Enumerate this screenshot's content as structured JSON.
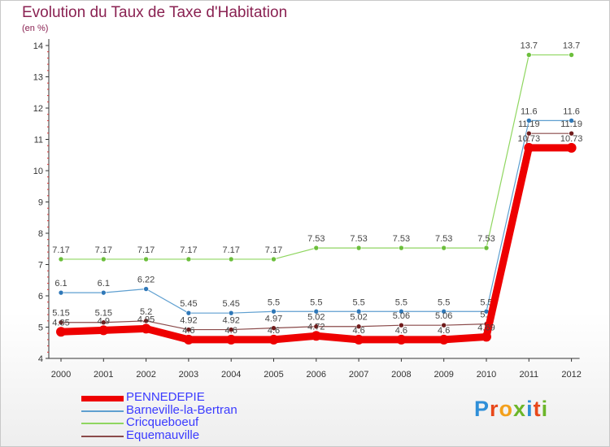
{
  "title": "Evolution du Taux de Taxe d'Habitation",
  "subtitle": "(en %)",
  "logo": {
    "text": "Proxiti",
    "letters": [
      "P",
      "r",
      "o",
      "x",
      "i",
      "t",
      "i"
    ],
    "colors": [
      "#2f8fd8",
      "#e8481a",
      "#f3a01c",
      "#6cb62a",
      "#2f8fd8",
      "#e8481a",
      "#6cb62a"
    ]
  },
  "chart_data": {
    "type": "line",
    "x": [
      "2000",
      "2001",
      "2002",
      "2003",
      "2004",
      "2005",
      "2006",
      "2007",
      "2008",
      "2009",
      "2010",
      "2011",
      "2012"
    ],
    "ylim": [
      4,
      14
    ],
    "yticks": [
      "4",
      "5",
      "6",
      "7",
      "8",
      "9",
      "10",
      "11",
      "12",
      "13",
      "14"
    ],
    "grid": false,
    "legend_position": "bottom-left",
    "series": [
      {
        "name": "Cricqueboeuf",
        "color": "#8fd660",
        "marker": "#6cbf3c",
        "width": 1.2,
        "values": [
          7.17,
          7.17,
          7.17,
          7.17,
          7.17,
          7.17,
          7.53,
          7.53,
          7.53,
          7.53,
          7.53,
          13.7,
          13.7
        ],
        "labels": [
          "7.17",
          "7.17",
          "7.17",
          "7.17",
          "7.17",
          "7.17",
          "7.53",
          "7.53",
          "7.53",
          "7.53",
          "7.53",
          "13.7",
          "13.7"
        ]
      },
      {
        "name": "Barneville-la-Bertran",
        "color": "#5e9fd0",
        "marker": "#2f78b8",
        "width": 1.2,
        "values": [
          6.1,
          6.1,
          6.22,
          5.45,
          5.45,
          5.5,
          5.5,
          5.5,
          5.5,
          5.5,
          5.5,
          11.6,
          11.6
        ],
        "labels": [
          "6.1",
          "6.1",
          "6.22",
          "5.45",
          "5.45",
          "5.5",
          "5.5",
          "5.5",
          "5.5",
          "5.5",
          "5.5",
          "11.6",
          "11.6"
        ]
      },
      {
        "name": "Equemauville",
        "color": "#8a4a4a",
        "marker": "#701c1c",
        "width": 1.2,
        "values": [
          5.15,
          5.15,
          5.2,
          4.92,
          4.92,
          4.97,
          5.02,
          5.02,
          5.06,
          5.06,
          5.1,
          11.19,
          11.19
        ],
        "labels": [
          "5.15",
          "5.15",
          "5.2",
          "4.92",
          "4.92",
          "4.97",
          "5.02",
          "5.02",
          "5.06",
          "5.06",
          "5.1",
          "11.19",
          "11.19"
        ]
      },
      {
        "name": "PENNEDEPIE",
        "color": "#ee0000",
        "marker": "#ee0000",
        "width": 9,
        "values": [
          4.85,
          4.9,
          4.95,
          4.6,
          4.6,
          4.6,
          4.72,
          4.6,
          4.6,
          4.6,
          4.69,
          10.73,
          10.73
        ],
        "labels": [
          "4.85",
          "4.9",
          "4.95",
          "4.6",
          "4.6",
          "4.6",
          "4.72",
          "4.6",
          "4.6",
          "4.6",
          "4.69",
          "10.73",
          "10.73"
        ]
      }
    ]
  },
  "legend": [
    {
      "name": "PENNEDEPIE",
      "color": "#ee0000",
      "thickness": 7
    },
    {
      "name": "Barneville-la-Bertran",
      "color": "#5e9fd0",
      "thickness": 2
    },
    {
      "name": "Cricqueboeuf",
      "color": "#8fd660",
      "thickness": 2
    },
    {
      "name": "Equemauville",
      "color": "#8a4a4a",
      "thickness": 2
    }
  ]
}
